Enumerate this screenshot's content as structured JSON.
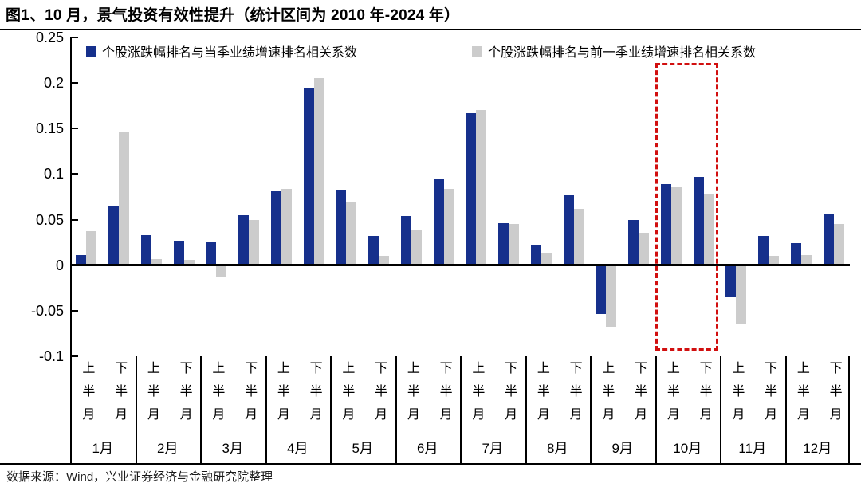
{
  "title": "图1、10 月，景气投资有效性提升（统计区间为 2010 年-2024 年）",
  "source": "数据来源：Wind，兴业证券经济与金融研究院整理",
  "chart_data": {
    "type": "bar",
    "title": "图1、10 月，景气投资有效性提升（统计区间为 2010 年-2024 年）",
    "xlabel": "",
    "ylabel": "",
    "ylim": [
      -0.1,
      0.25
    ],
    "ytick_labels": [
      "0.25",
      "0.2",
      "0.15",
      "0.1",
      "0.05",
      "0",
      "-0.05",
      "-0.1"
    ],
    "grid": false,
    "legend_position": "top-inside",
    "months": [
      "1月",
      "2月",
      "3月",
      "4月",
      "5月",
      "6月",
      "7月",
      "8月",
      "9月",
      "10月",
      "11月",
      "12月"
    ],
    "half_labels": [
      "上半月",
      "下半月"
    ],
    "categories": [
      "1月上半月",
      "1月下半月",
      "2月上半月",
      "2月下半月",
      "3月上半月",
      "3月下半月",
      "4月上半月",
      "4月下半月",
      "5月上半月",
      "5月下半月",
      "6月上半月",
      "6月下半月",
      "7月上半月",
      "7月下半月",
      "8月上半月",
      "8月下半月",
      "9月上半月",
      "9月下半月",
      "10月上半月",
      "10月下半月",
      "11月上半月",
      "11月下半月",
      "12月上半月",
      "12月下半月"
    ],
    "series": [
      {
        "name": "个股涨跌幅排名与当季业绩增速排名相关系数",
        "color": "#16308c",
        "values": [
          0.011,
          0.065,
          0.033,
          0.027,
          0.026,
          0.055,
          0.081,
          0.195,
          0.083,
          0.032,
          0.054,
          0.095,
          0.167,
          0.046,
          0.022,
          0.077,
          -0.054,
          0.05,
          0.089,
          0.097,
          -0.035,
          0.032,
          0.024,
          0.057
        ]
      },
      {
        "name": "个股涨跌幅排名与前一季业绩增速排名相关系数",
        "color": "#cccccc",
        "values": [
          0.037,
          0.147,
          0.007,
          0.006,
          -0.013,
          0.05,
          0.084,
          0.205,
          0.069,
          0.01,
          0.039,
          0.084,
          0.17,
          0.045,
          0.013,
          0.062,
          -0.068,
          0.036,
          0.086,
          0.078,
          -0.064,
          0.01,
          0.011,
          0.045
        ]
      }
    ],
    "highlight": {
      "month": "10月",
      "color": "#d10f0f",
      "style": "dashed-box"
    }
  }
}
